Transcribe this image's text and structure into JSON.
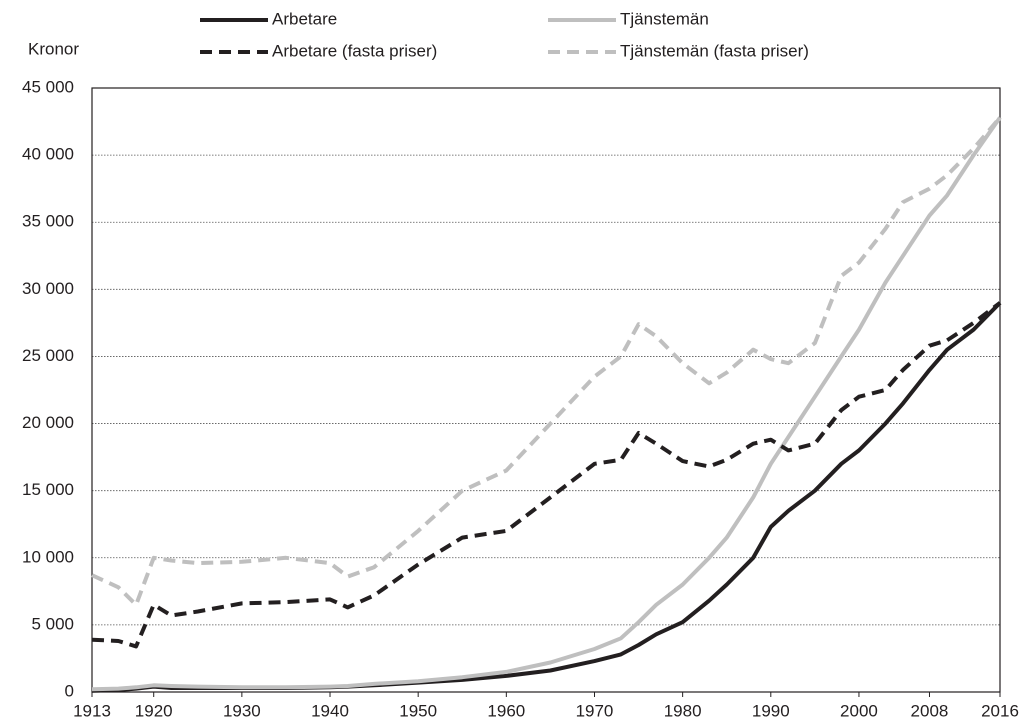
{
  "chart_data": {
    "type": "line",
    "y_label": "Kronor",
    "x": [
      1913,
      1916,
      1918,
      1920,
      1922,
      1925,
      1930,
      1935,
      1940,
      1942,
      1945,
      1950,
      1955,
      1960,
      1965,
      1970,
      1973,
      1975,
      1977,
      1980,
      1983,
      1985,
      1988,
      1990,
      1992,
      1995,
      1998,
      2000,
      2003,
      2005,
      2008,
      2010,
      2013,
      2016
    ],
    "series": [
      {
        "name": "Arbetare",
        "color": "#231f20",
        "dashed": false,
        "values": [
          100,
          150,
          250,
          400,
          300,
          300,
          300,
          300,
          350,
          400,
          500,
          700,
          900,
          1200,
          1600,
          2300,
          2800,
          3500,
          4300,
          5200,
          6800,
          8000,
          10000,
          12300,
          13500,
          15000,
          17000,
          18000,
          20000,
          21500,
          24000,
          25500,
          27000,
          29000
        ]
      },
      {
        "name": "Tjänstemän",
        "color": "#bfbfbf",
        "dashed": false,
        "values": [
          200,
          250,
          350,
          500,
          450,
          400,
          350,
          350,
          400,
          450,
          600,
          800,
          1100,
          1500,
          2200,
          3200,
          4000,
          5200,
          6500,
          8000,
          10000,
          11500,
          14500,
          17000,
          19000,
          22000,
          25000,
          27000,
          30500,
          32500,
          35500,
          37000,
          40000,
          42800
        ]
      },
      {
        "name": "Arbetare (fasta priser)",
        "color": "#231f20",
        "dashed": true,
        "values": [
          3900,
          3800,
          3400,
          6500,
          5700,
          6000,
          6600,
          6700,
          6900,
          6300,
          7200,
          9500,
          11500,
          12000,
          14500,
          17000,
          17300,
          19300,
          18500,
          17200,
          16800,
          17300,
          18500,
          18800,
          18000,
          18500,
          21000,
          22000,
          22500,
          24000,
          25800,
          26200,
          27500,
          29000
        ]
      },
      {
        "name": "Tjänstemän (fasta priser)",
        "color": "#bfbfbf",
        "dashed": true,
        "values": [
          8700,
          7800,
          6500,
          10000,
          9800,
          9600,
          9700,
          10000,
          9600,
          8600,
          9300,
          12000,
          15000,
          16500,
          20000,
          23500,
          25000,
          27400,
          26500,
          24500,
          23000,
          23800,
          25500,
          24800,
          24500,
          26000,
          31000,
          32000,
          34500,
          36500,
          37500,
          38500,
          40500,
          42800
        ]
      }
    ],
    "xlim": [
      1913,
      2016
    ],
    "xticks": [
      1913,
      1920,
      1930,
      1940,
      1950,
      1960,
      1970,
      1980,
      1990,
      2000,
      2008,
      2016
    ],
    "ylim": [
      0,
      45000
    ],
    "yticks": [
      0,
      {
        "value": 5000,
        "label": "5 000"
      },
      {
        "value": 10000,
        "label": "10 000"
      },
      {
        "value": 15000,
        "label": "15 000"
      },
      {
        "value": 20000,
        "label": "20 000"
      },
      {
        "value": 25000,
        "label": "25 000"
      },
      {
        "value": 30000,
        "label": "30 000"
      },
      {
        "value": 35000,
        "label": "35 000"
      },
      {
        "value": 40000,
        "label": "40 000"
      },
      {
        "value": 45000,
        "label": "45 000"
      }
    ],
    "grid": true
  }
}
